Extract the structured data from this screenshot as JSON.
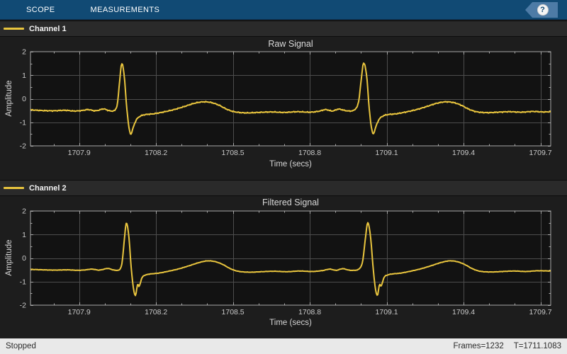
{
  "toolbar": {
    "tabs": [
      {
        "label": "SCOPE"
      },
      {
        "label": "MEASUREMENTS"
      }
    ],
    "help_icon": "?"
  },
  "status_bar": {
    "left": "Stopped",
    "frames": "Frames=1232",
    "time": "T=1711.1083"
  },
  "colors": {
    "toolbar_blue": "#114a74",
    "help_tag_blue": "#4d7ba6",
    "waveform_yellow": "#e9c53e",
    "plot_background": "#121212",
    "grid_gray": "#4d4d4d",
    "axes_border": "#a8a8a8",
    "status_bar_bg": "#e9e9e9"
  },
  "chart_data": [
    {
      "type": "line",
      "title": "Raw Signal",
      "legend": "Channel 1",
      "series_name": "channel-1",
      "xlabel": "Time (secs)",
      "ylabel": "Amplitude",
      "xlim": [
        1707.71,
        1709.74
      ],
      "ylim": [
        -2,
        2
      ],
      "xticks": [
        1707.9,
        1708.2,
        1708.5,
        1708.8,
        1709.1,
        1709.4,
        1709.7
      ],
      "xtick_labels": [
        "1707.9",
        "1708.2",
        "1708.5",
        "1708.8",
        "1709.1",
        "1709.4",
        "1709.7"
      ],
      "yticks": [
        -2,
        -1,
        0,
        1,
        2
      ],
      "ytick_labels": [
        "-2",
        "-1",
        "0",
        "1",
        "2"
      ],
      "x_minor_step": 0.1,
      "y_minor_step": 0.5,
      "grid": true,
      "line_color": "#e9c53e",
      "noise": 0.025,
      "points": [
        [
          1707.71,
          -0.47
        ],
        [
          1707.755,
          -0.5
        ],
        [
          1707.8,
          -0.51
        ],
        [
          1707.845,
          -0.49
        ],
        [
          1707.88,
          -0.52
        ],
        [
          1707.91,
          -0.5
        ],
        [
          1707.935,
          -0.46
        ],
        [
          1707.96,
          -0.51
        ],
        [
          1707.975,
          -0.49
        ],
        [
          1707.995,
          -0.43
        ],
        [
          1708.015,
          -0.5
        ],
        [
          1708.03,
          -0.52
        ],
        [
          1708.042,
          -0.45
        ],
        [
          1708.05,
          -0.15
        ],
        [
          1708.058,
          0.75
        ],
        [
          1708.066,
          1.5
        ],
        [
          1708.076,
          0.95
        ],
        [
          1708.085,
          -0.3
        ],
        [
          1708.094,
          -1.2
        ],
        [
          1708.102,
          -1.5
        ],
        [
          1708.112,
          -1.18
        ],
        [
          1708.124,
          -0.88
        ],
        [
          1708.14,
          -0.73
        ],
        [
          1708.16,
          -0.67
        ],
        [
          1708.19,
          -0.64
        ],
        [
          1708.23,
          -0.56
        ],
        [
          1708.27,
          -0.46
        ],
        [
          1708.31,
          -0.33
        ],
        [
          1708.35,
          -0.19
        ],
        [
          1708.385,
          -0.13
        ],
        [
          1708.415,
          -0.16
        ],
        [
          1708.445,
          -0.27
        ],
        [
          1708.475,
          -0.44
        ],
        [
          1708.505,
          -0.55
        ],
        [
          1708.55,
          -0.6
        ],
        [
          1708.6,
          -0.58
        ],
        [
          1708.65,
          -0.56
        ],
        [
          1708.7,
          -0.58
        ],
        [
          1708.75,
          -0.55
        ],
        [
          1708.8,
          -0.57
        ],
        [
          1708.835,
          -0.53
        ],
        [
          1708.862,
          -0.46
        ],
        [
          1708.888,
          -0.52
        ],
        [
          1708.912,
          -0.44
        ],
        [
          1708.938,
          -0.5
        ],
        [
          1708.958,
          -0.52
        ],
        [
          1708.975,
          -0.46
        ],
        [
          1708.99,
          -0.15
        ],
        [
          1709.0,
          0.75
        ],
        [
          1709.01,
          1.52
        ],
        [
          1709.022,
          0.95
        ],
        [
          1709.031,
          -0.3
        ],
        [
          1709.04,
          -1.2
        ],
        [
          1709.048,
          -1.48
        ],
        [
          1709.058,
          -1.18
        ],
        [
          1709.07,
          -0.88
        ],
        [
          1709.086,
          -0.73
        ],
        [
          1709.106,
          -0.67
        ],
        [
          1709.136,
          -0.64
        ],
        [
          1709.176,
          -0.56
        ],
        [
          1709.216,
          -0.46
        ],
        [
          1709.256,
          -0.33
        ],
        [
          1709.296,
          -0.19
        ],
        [
          1709.33,
          -0.13
        ],
        [
          1709.36,
          -0.16
        ],
        [
          1709.39,
          -0.27
        ],
        [
          1709.42,
          -0.44
        ],
        [
          1709.45,
          -0.55
        ],
        [
          1709.49,
          -0.59
        ],
        [
          1709.535,
          -0.57
        ],
        [
          1709.58,
          -0.55
        ],
        [
          1709.625,
          -0.57
        ],
        [
          1709.67,
          -0.54
        ],
        [
          1709.71,
          -0.56
        ],
        [
          1709.74,
          -0.55
        ]
      ]
    },
    {
      "type": "line",
      "title": "Filtered Signal",
      "legend": "Channel 2",
      "series_name": "channel-2",
      "xlabel": "Time (secs)",
      "ylabel": "Amplitude",
      "xlim": [
        1707.71,
        1709.74
      ],
      "ylim": [
        -2,
        2
      ],
      "xticks": [
        1707.9,
        1708.2,
        1708.5,
        1708.8,
        1709.1,
        1709.4,
        1709.7
      ],
      "xtick_labels": [
        "1707.9",
        "1708.2",
        "1708.5",
        "1708.8",
        "1709.1",
        "1709.4",
        "1709.7"
      ],
      "yticks": [
        -2,
        -1,
        0,
        1,
        2
      ],
      "ytick_labels": [
        "-2",
        "-1",
        "0",
        "1",
        "2"
      ],
      "x_minor_step": 0.1,
      "y_minor_step": 0.5,
      "grid": true,
      "line_color": "#e9c53e",
      "noise": 0.01,
      "points": [
        [
          1707.71,
          -0.48
        ],
        [
          1707.76,
          -0.5
        ],
        [
          1707.81,
          -0.51
        ],
        [
          1707.855,
          -0.5
        ],
        [
          1707.895,
          -0.52
        ],
        [
          1707.925,
          -0.5
        ],
        [
          1707.95,
          -0.47
        ],
        [
          1707.975,
          -0.51
        ],
        [
          1707.99,
          -0.49
        ],
        [
          1708.012,
          -0.44
        ],
        [
          1708.032,
          -0.5
        ],
        [
          1708.048,
          -0.52
        ],
        [
          1708.06,
          -0.46
        ],
        [
          1708.068,
          -0.15
        ],
        [
          1708.076,
          0.75
        ],
        [
          1708.084,
          1.49
        ],
        [
          1708.094,
          0.9
        ],
        [
          1708.103,
          -0.4
        ],
        [
          1708.112,
          -1.3
        ],
        [
          1708.12,
          -1.58
        ],
        [
          1708.128,
          -1.12
        ],
        [
          1708.134,
          -1.2
        ],
        [
          1708.146,
          -0.82
        ],
        [
          1708.162,
          -0.71
        ],
        [
          1708.182,
          -0.67
        ],
        [
          1708.21,
          -0.64
        ],
        [
          1708.248,
          -0.56
        ],
        [
          1708.288,
          -0.46
        ],
        [
          1708.328,
          -0.33
        ],
        [
          1708.368,
          -0.19
        ],
        [
          1708.4,
          -0.12
        ],
        [
          1708.43,
          -0.15
        ],
        [
          1708.46,
          -0.27
        ],
        [
          1708.49,
          -0.45
        ],
        [
          1708.52,
          -0.56
        ],
        [
          1708.565,
          -0.6
        ],
        [
          1708.61,
          -0.58
        ],
        [
          1708.66,
          -0.56
        ],
        [
          1708.71,
          -0.58
        ],
        [
          1708.76,
          -0.55
        ],
        [
          1708.81,
          -0.57
        ],
        [
          1708.85,
          -0.53
        ],
        [
          1708.878,
          -0.47
        ],
        [
          1708.903,
          -0.52
        ],
        [
          1708.928,
          -0.45
        ],
        [
          1708.952,
          -0.51
        ],
        [
          1708.972,
          -0.52
        ],
        [
          1708.992,
          -0.46
        ],
        [
          1709.006,
          -0.15
        ],
        [
          1709.016,
          0.75
        ],
        [
          1709.026,
          1.5
        ],
        [
          1709.037,
          0.9
        ],
        [
          1709.047,
          -0.4
        ],
        [
          1709.056,
          -1.3
        ],
        [
          1709.064,
          -1.58
        ],
        [
          1709.072,
          -1.12
        ],
        [
          1709.078,
          -1.2
        ],
        [
          1709.09,
          -0.82
        ],
        [
          1709.106,
          -0.71
        ],
        [
          1709.126,
          -0.67
        ],
        [
          1709.154,
          -0.64
        ],
        [
          1709.192,
          -0.56
        ],
        [
          1709.232,
          -0.46
        ],
        [
          1709.272,
          -0.33
        ],
        [
          1709.312,
          -0.19
        ],
        [
          1709.344,
          -0.12
        ],
        [
          1709.374,
          -0.15
        ],
        [
          1709.404,
          -0.27
        ],
        [
          1709.434,
          -0.45
        ],
        [
          1709.464,
          -0.56
        ],
        [
          1709.508,
          -0.59
        ],
        [
          1709.553,
          -0.57
        ],
        [
          1709.598,
          -0.55
        ],
        [
          1709.643,
          -0.57
        ],
        [
          1709.688,
          -0.54
        ],
        [
          1709.74,
          -0.55
        ]
      ]
    }
  ]
}
